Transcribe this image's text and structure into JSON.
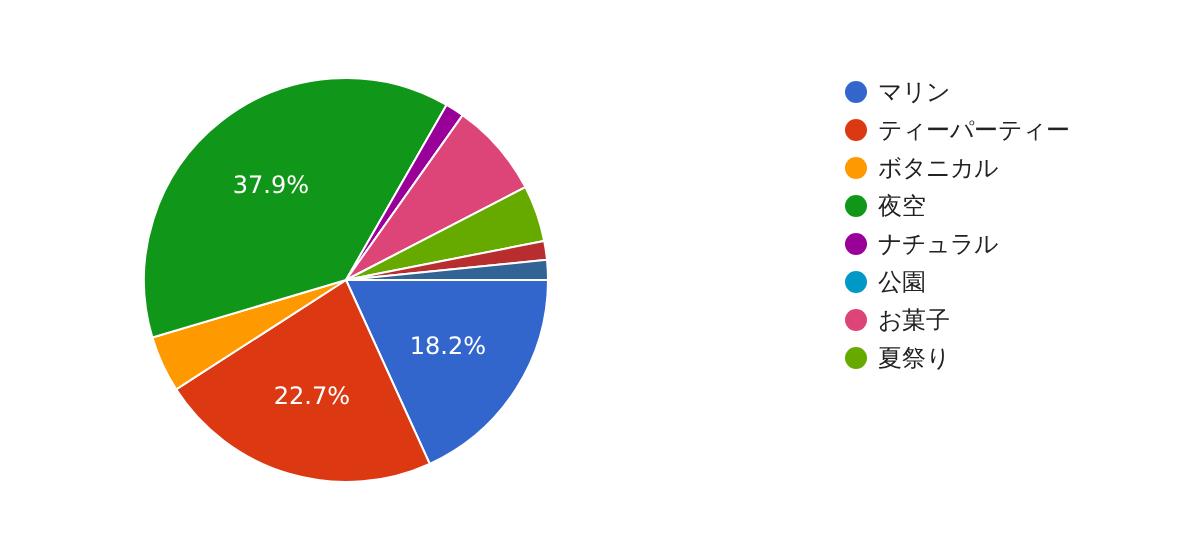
{
  "chart_data": {
    "type": "pie",
    "categories": [
      "マリン",
      "ティーパーティー",
      "ボタニカル",
      "夜空",
      "ナチュラル",
      "公園",
      "お菓子",
      "夏祭り",
      null,
      null
    ],
    "values": [
      18.2,
      22.7,
      4.5,
      37.9,
      1.5,
      0,
      7.6,
      4.5,
      1.5,
      1.6
    ],
    "colors": [
      "#3366cc",
      "#dc3912",
      "#ff9900",
      "#109618",
      "#990099",
      "#0099c6",
      "#dd4477",
      "#66aa00",
      "#b82e2e",
      "#316395"
    ],
    "value_labels": [
      "18.2%",
      "22.7%",
      null,
      "37.9%",
      null,
      null,
      null,
      null,
      null,
      null
    ],
    "legend": "right"
  }
}
